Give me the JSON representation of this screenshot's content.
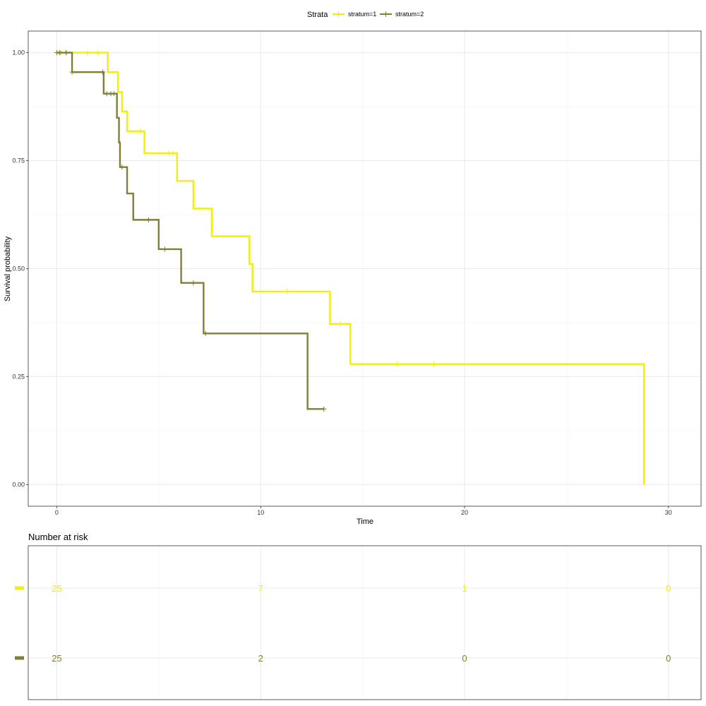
{
  "chart_data": [
    {
      "type": "line",
      "subtype": "kaplan-meier-step",
      "xlabel": "Time",
      "ylabel": "Survival probability",
      "xlim": [
        -1.4,
        31.6
      ],
      "ylim": [
        -0.05,
        1.05
      ],
      "x_ticks": [
        0,
        10,
        20,
        30
      ],
      "x_tick_labels": [
        "0",
        "10",
        "20",
        "30"
      ],
      "y_ticks": [
        0,
        0.25,
        0.5,
        0.75,
        1.0
      ],
      "y_tick_labels": [
        "0.00",
        "0.25",
        "0.50",
        "0.75",
        "1.00"
      ],
      "grid": true,
      "legend": {
        "title": "Strata",
        "placement": "top",
        "entries": [
          "stratum=1",
          "stratum=2"
        ]
      },
      "series": [
        {
          "name": "stratum=1",
          "color": "#F0F000",
          "steps": [
            {
              "x": 0,
              "y": 1.0
            },
            {
              "x": 2.5,
              "y": 0.955
            },
            {
              "x": 3.0,
              "y": 0.909
            },
            {
              "x": 3.2,
              "y": 0.864
            },
            {
              "x": 3.45,
              "y": 0.818
            },
            {
              "x": 4.3,
              "y": 0.767
            },
            {
              "x": 5.9,
              "y": 0.703
            },
            {
              "x": 6.7,
              "y": 0.639
            },
            {
              "x": 7.6,
              "y": 0.575
            },
            {
              "x": 9.45,
              "y": 0.511
            },
            {
              "x": 9.6,
              "y": 0.447
            },
            {
              "x": 13.4,
              "y": 0.372
            },
            {
              "x": 14.4,
              "y": 0.279
            },
            {
              "x": 28.8,
              "y": 0.0
            }
          ],
          "end_x": 28.8,
          "censored": [
            {
              "x": 0.1,
              "y": 1.0
            },
            {
              "x": 0.2,
              "y": 1.0
            },
            {
              "x": 0.5,
              "y": 1.0
            },
            {
              "x": 1.5,
              "y": 1.0
            },
            {
              "x": 2.0,
              "y": 1.0
            },
            {
              "x": 4.1,
              "y": 0.818
            },
            {
              "x": 5.5,
              "y": 0.767
            },
            {
              "x": 5.7,
              "y": 0.767
            },
            {
              "x": 11.3,
              "y": 0.447
            },
            {
              "x": 13.9,
              "y": 0.372
            },
            {
              "x": 16.7,
              "y": 0.279
            },
            {
              "x": 18.5,
              "y": 0.279
            }
          ]
        },
        {
          "name": "stratum=2",
          "color": "#7F7F38",
          "steps": [
            {
              "x": 0,
              "y": 1.0
            },
            {
              "x": 0.75,
              "y": 0.955
            },
            {
              "x": 2.3,
              "y": 0.905
            },
            {
              "x": 2.95,
              "y": 0.849
            },
            {
              "x": 3.05,
              "y": 0.792
            },
            {
              "x": 3.1,
              "y": 0.735
            },
            {
              "x": 3.45,
              "y": 0.674
            },
            {
              "x": 3.75,
              "y": 0.613
            },
            {
              "x": 5.0,
              "y": 0.545
            },
            {
              "x": 6.1,
              "y": 0.467
            },
            {
              "x": 7.2,
              "y": 0.35
            },
            {
              "x": 12.3,
              "y": 0.175
            }
          ],
          "end_x": 13.1,
          "censored": [
            {
              "x": 0.0,
              "y": 1.0
            },
            {
              "x": 0.15,
              "y": 1.0
            },
            {
              "x": 0.45,
              "y": 1.0
            },
            {
              "x": 0.75,
              "y": 0.955
            },
            {
              "x": 2.25,
              "y": 0.955
            },
            {
              "x": 2.45,
              "y": 0.905
            },
            {
              "x": 2.65,
              "y": 0.905
            },
            {
              "x": 2.8,
              "y": 0.905
            },
            {
              "x": 3.2,
              "y": 0.735
            },
            {
              "x": 4.5,
              "y": 0.613
            },
            {
              "x": 5.3,
              "y": 0.545
            },
            {
              "x": 6.7,
              "y": 0.467
            },
            {
              "x": 7.3,
              "y": 0.35
            },
            {
              "x": 13.1,
              "y": 0.175
            }
          ]
        }
      ]
    },
    {
      "type": "table",
      "title": "Number at risk",
      "x": [
        0,
        10,
        20,
        30
      ],
      "rows": [
        {
          "name": "stratum=1",
          "color": "#F0F000",
          "values": [
            "25",
            "7",
            "1",
            "0"
          ]
        },
        {
          "name": "stratum=2",
          "color": "#7F7F38",
          "values": [
            "25",
            "2",
            "0",
            "0"
          ]
        }
      ]
    }
  ]
}
